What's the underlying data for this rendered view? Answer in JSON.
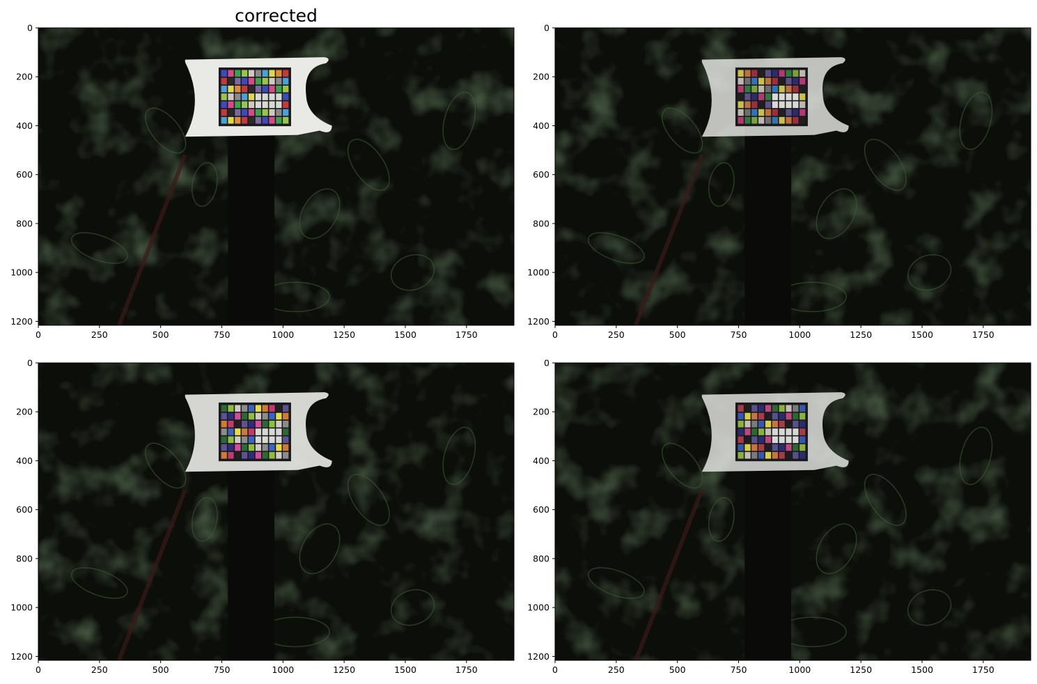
{
  "chart_data": [
    {
      "type": "image",
      "title": "corrected",
      "xlim": [
        0,
        1944
      ],
      "ylim": [
        1216,
        0
      ],
      "xticks": [
        0,
        250,
        500,
        750,
        1000,
        1250,
        1500,
        1750
      ],
      "yticks": [
        0,
        200,
        400,
        600,
        800,
        1000,
        1200
      ],
      "tint": "#1f2a1c",
      "chart_brightness": 1.0,
      "chart_colors": [
        "#3b4bbf",
        "#e0d84a",
        "#3aa34a",
        "#c23a3a",
        "#cfc9c2",
        "#7a6b9c",
        "#4aa0d8",
        "#d64a8a",
        "#e08a3a",
        "#9bc44a",
        "#2a2a2a",
        "#8a8a8a"
      ]
    },
    {
      "type": "image",
      "title": "",
      "xlim": [
        0,
        1944
      ],
      "ylim": [
        1216,
        0
      ],
      "xticks": [
        0,
        250,
        500,
        750,
        1000,
        1250,
        1500,
        1750
      ],
      "yticks": [
        0,
        200,
        400,
        600,
        800,
        1000,
        1200
      ],
      "tint": "#211f1a",
      "chart_brightness": 0.8,
      "chart_colors": [
        "#2e2a6e",
        "#c9c04a",
        "#2f7a3a",
        "#9e2f3a",
        "#bdb7b0",
        "#5a4f86",
        "#2f74b8",
        "#b23a6e",
        "#c0703a",
        "#7aa03a",
        "#1f1f22",
        "#6e6e6e"
      ]
    },
    {
      "type": "image",
      "title": "",
      "xlim": [
        0,
        1944
      ],
      "ylim": [
        1216,
        0
      ],
      "xticks": [
        0,
        250,
        500,
        750,
        1000,
        1250,
        1500,
        1750
      ],
      "yticks": [
        0,
        200,
        400,
        600,
        800,
        1000,
        1200
      ],
      "tint": "#1f2a1e",
      "chart_brightness": 0.9,
      "chart_colors": [
        "#2c2e7a",
        "#e6df44",
        "#2c6a34",
        "#c23a6e",
        "#d0cbc4",
        "#5c5296",
        "#3a64c6",
        "#d84a9a",
        "#d07a34",
        "#8fbf3a",
        "#202022",
        "#8c8c8c"
      ]
    },
    {
      "type": "image",
      "title": "",
      "xlim": [
        0,
        1944
      ],
      "ylim": [
        1216,
        0
      ],
      "xticks": [
        0,
        250,
        500,
        750,
        1000,
        1250,
        1500,
        1750
      ],
      "yticks": [
        0,
        200,
        400,
        600,
        800,
        1000,
        1200
      ],
      "tint": "#221f1b",
      "chart_brightness": 0.8,
      "chart_colors": [
        "#2a2c70",
        "#d8d040",
        "#2a6a32",
        "#a93a4a",
        "#c4beb6",
        "#56508c",
        "#3458b0",
        "#c0447e",
        "#c8753a",
        "#8ab23a",
        "#1e1e20",
        "#7a7a7a"
      ]
    }
  ]
}
